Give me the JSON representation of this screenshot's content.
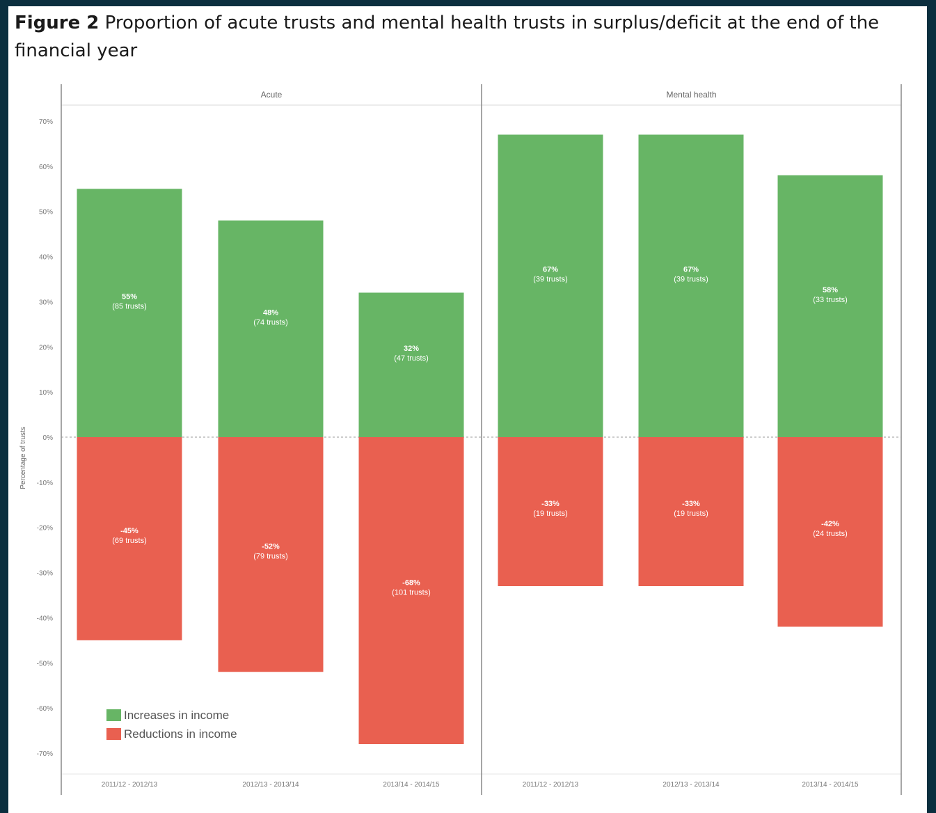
{
  "title": {
    "figure_label": "Figure 2",
    "text": "Proportion of acute trusts and mental health trusts in surplus/deficit at the end of the financial year"
  },
  "colors": {
    "increase": "#67b565",
    "reduction": "#e96050",
    "frame_background": "#0b2f3f"
  },
  "legend": {
    "increase_label": "Increases in income",
    "reduction_label": "Reductions in income"
  },
  "chart_data": {
    "type": "bar",
    "ylabel": "Percentage of trusts",
    "ylim": [
      -70,
      70
    ],
    "yticks": [
      70,
      60,
      50,
      40,
      30,
      20,
      10,
      0,
      -10,
      -20,
      -30,
      -40,
      -50,
      -60,
      -70
    ],
    "ytick_labels": [
      "70%",
      "60%",
      "50%",
      "40%",
      "30%",
      "20%",
      "10%",
      "0%",
      "-10%",
      "-20%",
      "-30%",
      "-40%",
      "-50%",
      "-60%",
      "-70%"
    ],
    "grid": false,
    "legend_position": "bottom-left",
    "panels": [
      {
        "name": "Acute",
        "categories": [
          "2011/12 - 2012/13",
          "2012/13 - 2013/14",
          "2013/14 - 2014/15"
        ],
        "series": [
          {
            "name": "Increases in income",
            "values": [
              55,
              48,
              32
            ],
            "labels": [
              "55%",
              "48%",
              "32%"
            ],
            "sublabels": [
              "(85 trusts)",
              "(74 trusts)",
              "(47 trusts)"
            ]
          },
          {
            "name": "Reductions in income",
            "values": [
              -45,
              -52,
              -68
            ],
            "labels": [
              "-45%",
              "-52%",
              "-68%"
            ],
            "sublabels": [
              "(69 trusts)",
              "(79 trusts)",
              "(101 trusts)"
            ]
          }
        ]
      },
      {
        "name": "Mental health",
        "categories": [
          "2011/12 - 2012/13",
          "2012/13 - 2013/14",
          "2013/14 - 2014/15"
        ],
        "series": [
          {
            "name": "Increases in income",
            "values": [
              67,
              67,
              58
            ],
            "labels": [
              "67%",
              "67%",
              "58%"
            ],
            "sublabels": [
              "(39 trusts)",
              "(39 trusts)",
              "(33 trusts)"
            ]
          },
          {
            "name": "Reductions in income",
            "values": [
              -33,
              -33,
              -42
            ],
            "labels": [
              "-33%",
              "-33%",
              "-42%"
            ],
            "sublabels": [
              "(19 trusts)",
              "(19 trusts)",
              "(24 trusts)"
            ]
          }
        ]
      }
    ]
  }
}
